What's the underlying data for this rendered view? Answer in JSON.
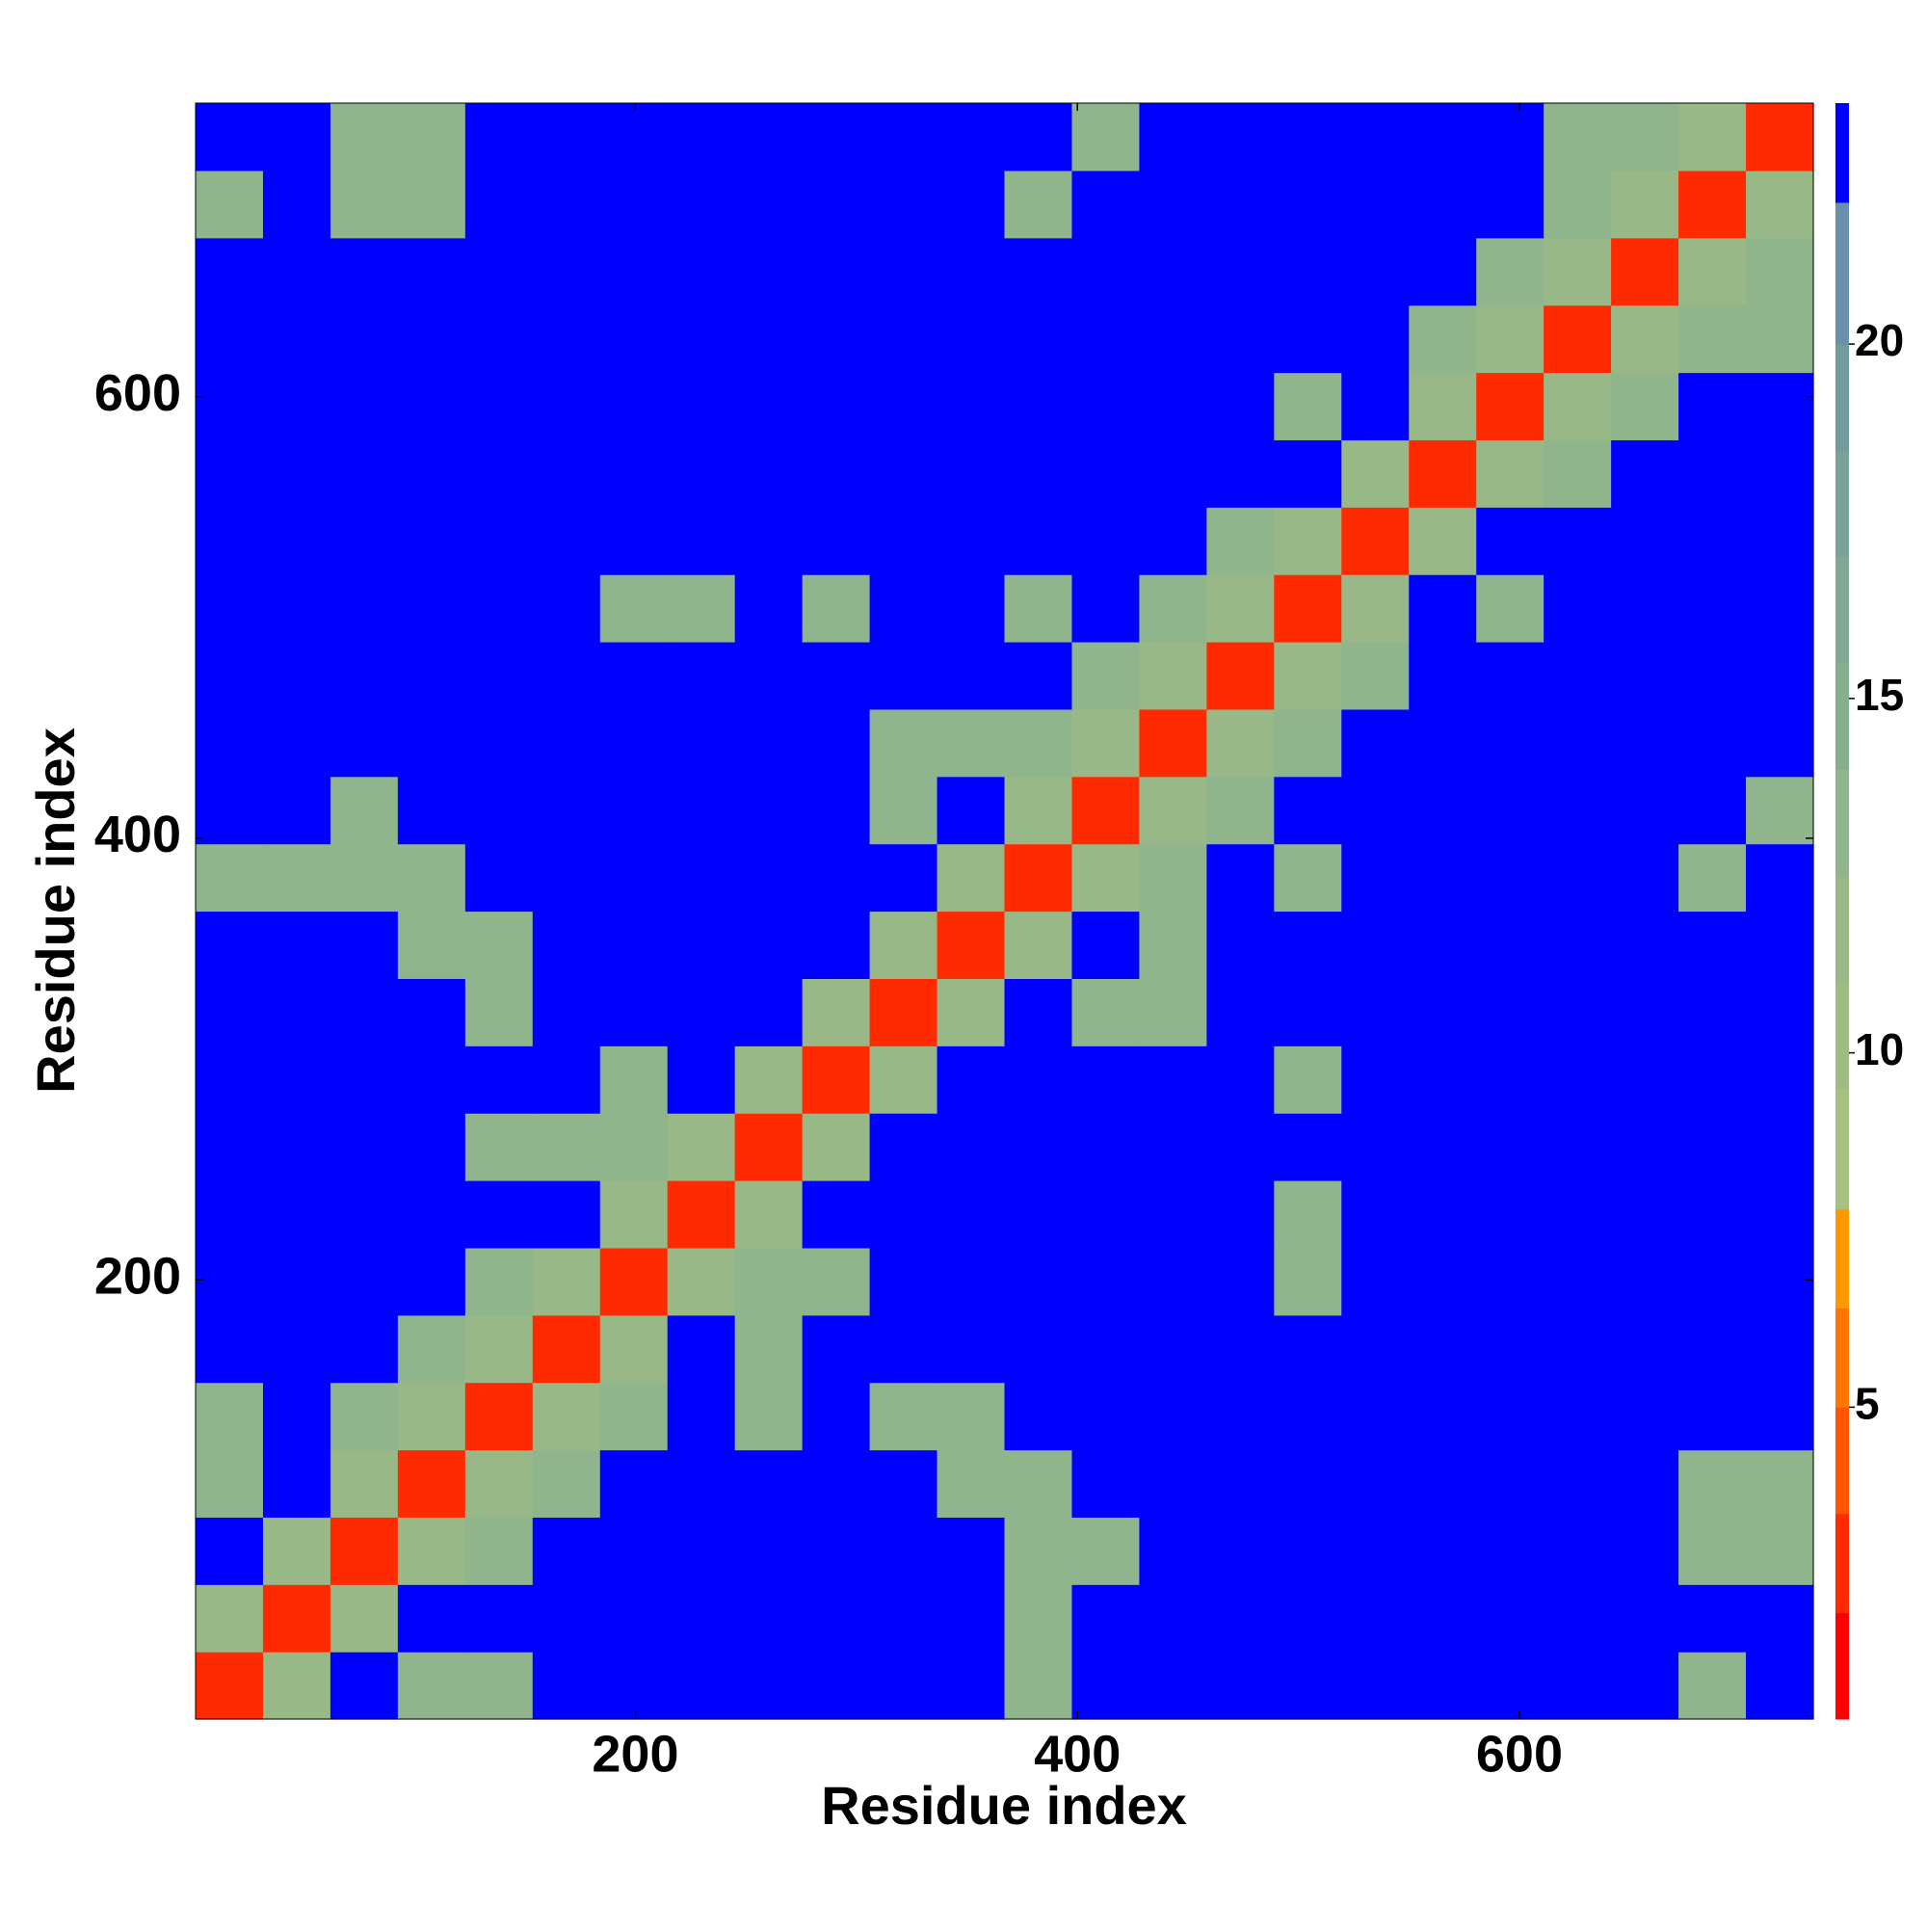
{
  "chart_data": {
    "type": "heatmap",
    "xlabel": "Residue index",
    "ylabel": "Residue index",
    "xlim": [
      1,
      733
    ],
    "ylim": [
      1,
      733
    ],
    "xticks": [
      200,
      400,
      600
    ],
    "yticks": [
      200,
      400,
      600
    ],
    "z": [
      [
        3,
        12,
        23,
        14,
        14,
        23,
        23,
        23,
        23,
        23,
        23,
        23,
        14,
        23,
        23,
        23,
        23,
        23,
        23,
        23,
        23,
        23,
        14,
        23
      ],
      [
        12,
        3,
        12,
        23,
        23,
        23,
        23,
        23,
        23,
        23,
        23,
        23,
        14,
        23,
        23,
        23,
        23,
        23,
        23,
        23,
        23,
        23,
        23,
        23
      ],
      [
        23,
        12,
        3,
        12,
        14,
        23,
        23,
        23,
        23,
        23,
        23,
        23,
        14,
        14,
        23,
        23,
        23,
        23,
        23,
        23,
        23,
        23,
        14,
        14
      ],
      [
        14,
        23,
        12,
        3,
        12,
        14,
        23,
        23,
        23,
        23,
        23,
        14,
        14,
        23,
        23,
        23,
        23,
        23,
        23,
        23,
        23,
        23,
        14,
        14
      ],
      [
        14,
        23,
        14,
        12,
        3,
        12,
        14,
        23,
        14,
        23,
        14,
        14,
        23,
        23,
        23,
        23,
        23,
        23,
        23,
        23,
        23,
        23,
        23,
        23
      ],
      [
        23,
        23,
        23,
        14,
        12,
        3,
        12,
        23,
        14,
        23,
        23,
        23,
        23,
        23,
        23,
        23,
        23,
        23,
        23,
        23,
        23,
        23,
        23,
        23
      ],
      [
        23,
        23,
        23,
        23,
        14,
        12,
        3,
        12,
        14,
        14,
        23,
        23,
        23,
        23,
        23,
        23,
        14,
        23,
        23,
        23,
        23,
        23,
        23,
        23
      ],
      [
        23,
        23,
        23,
        23,
        23,
        23,
        12,
        3,
        12,
        23,
        23,
        23,
        23,
        23,
        23,
        23,
        14,
        23,
        23,
        23,
        23,
        23,
        23,
        23
      ],
      [
        23,
        23,
        23,
        23,
        14,
        14,
        14,
        12,
        3,
        12,
        23,
        23,
        23,
        23,
        23,
        23,
        23,
        23,
        23,
        23,
        23,
        23,
        23,
        23
      ],
      [
        23,
        23,
        23,
        23,
        23,
        23,
        14,
        23,
        12,
        3,
        12,
        23,
        23,
        23,
        23,
        23,
        14,
        23,
        23,
        23,
        23,
        23,
        23,
        23
      ],
      [
        23,
        23,
        23,
        23,
        14,
        23,
        23,
        23,
        23,
        12,
        3,
        12,
        23,
        14,
        14,
        23,
        23,
        23,
        23,
        23,
        23,
        23,
        23,
        23
      ],
      [
        23,
        23,
        23,
        14,
        14,
        23,
        23,
        23,
        23,
        23,
        12,
        3,
        12,
        23,
        14,
        23,
        23,
        23,
        23,
        23,
        23,
        23,
        23,
        23
      ],
      [
        14,
        14,
        14,
        14,
        23,
        23,
        23,
        23,
        23,
        23,
        23,
        12,
        3,
        12,
        14,
        23,
        14,
        23,
        23,
        23,
        23,
        23,
        14,
        23
      ],
      [
        23,
        23,
        14,
        23,
        23,
        23,
        23,
        23,
        23,
        23,
        14,
        23,
        12,
        3,
        12,
        14,
        23,
        23,
        23,
        23,
        23,
        23,
        23,
        14
      ],
      [
        23,
        23,
        23,
        23,
        23,
        23,
        23,
        23,
        23,
        23,
        14,
        14,
        14,
        12,
        3,
        12,
        14,
        23,
        23,
        23,
        23,
        23,
        23,
        23
      ],
      [
        23,
        23,
        23,
        23,
        23,
        23,
        23,
        23,
        23,
        23,
        23,
        23,
        23,
        14,
        12,
        3,
        12,
        14,
        23,
        23,
        23,
        23,
        23,
        23
      ],
      [
        23,
        23,
        23,
        23,
        23,
        23,
        14,
        14,
        23,
        14,
        23,
        23,
        14,
        23,
        14,
        12,
        3,
        12,
        23,
        14,
        23,
        23,
        23,
        23
      ],
      [
        23,
        23,
        23,
        23,
        23,
        23,
        23,
        23,
        23,
        23,
        23,
        23,
        23,
        23,
        23,
        14,
        12,
        3,
        12,
        23,
        23,
        23,
        23,
        23
      ],
      [
        23,
        23,
        23,
        23,
        23,
        23,
        23,
        23,
        23,
        23,
        23,
        23,
        23,
        23,
        23,
        23,
        23,
        12,
        3,
        12,
        14,
        23,
        23,
        23
      ],
      [
        23,
        23,
        23,
        23,
        23,
        23,
        23,
        23,
        23,
        23,
        23,
        23,
        23,
        23,
        23,
        23,
        14,
        23,
        12,
        3,
        12,
        14,
        23,
        23
      ],
      [
        23,
        23,
        23,
        23,
        23,
        23,
        23,
        23,
        23,
        23,
        23,
        23,
        23,
        23,
        23,
        23,
        23,
        23,
        14,
        12,
        3,
        12,
        14,
        14
      ],
      [
        23,
        23,
        23,
        23,
        23,
        23,
        23,
        23,
        23,
        23,
        23,
        23,
        23,
        23,
        23,
        23,
        23,
        23,
        23,
        14,
        12,
        3,
        12,
        14
      ],
      [
        14,
        23,
        14,
        14,
        23,
        23,
        23,
        23,
        23,
        23,
        23,
        23,
        14,
        23,
        23,
        23,
        23,
        23,
        23,
        23,
        14,
        12,
        3,
        12
      ],
      [
        23,
        23,
        14,
        14,
        23,
        23,
        23,
        23,
        23,
        23,
        23,
        23,
        23,
        14,
        23,
        23,
        23,
        23,
        23,
        23,
        14,
        14,
        12,
        3
      ]
    ],
    "zlim": [
      0.6,
      23.4
    ],
    "zticks": [
      5,
      10,
      15,
      20
    ],
    "colorbar": {
      "levels": [
        0.6,
        2.1,
        3.5,
        5,
        6.4,
        7.8,
        9.5,
        11,
        12.5,
        14,
        15.5,
        17,
        18.5,
        20,
        22,
        23.4
      ],
      "colors": [
        "#ff0000",
        "#ff2a00",
        "#ff5500",
        "#ff7700",
        "#ff9900",
        "#a8c080",
        "#a0bc84",
        "#98b888",
        "#90b48c",
        "#88ae90",
        "#80a894",
        "#78a298",
        "#709c9c",
        "#6890a8",
        "#0000ff"
      ]
    }
  }
}
